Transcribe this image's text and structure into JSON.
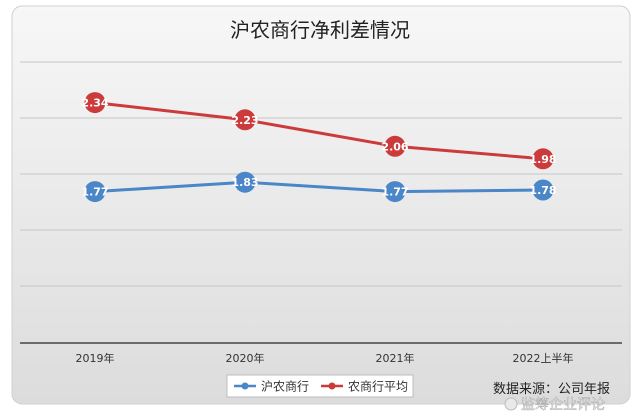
{
  "chart_data": {
    "type": "line",
    "title": "沪农商行净利差情况",
    "categories": [
      "2019年",
      "2020年",
      "2021年",
      "2022上半年"
    ],
    "series": [
      {
        "name": "沪农商行",
        "values": [
          1.77,
          1.83,
          1.77,
          1.78
        ],
        "color": "#4a86c8"
      },
      {
        "name": "农商行平均",
        "values": [
          2.34,
          2.23,
          2.06,
          1.98
        ],
        "color": "#cc3b3b"
      }
    ],
    "value_labels": {
      "s0": [
        "1.77",
        "1.83",
        "1.77",
        "1.78"
      ],
      "s1": [
        "2.34",
        "2.23",
        "2.06",
        "1.98"
      ]
    },
    "ylim": [
      0.8,
      2.6
    ],
    "grid": true,
    "legend": "bottom",
    "source_note": "数据来源：公司年报",
    "watermark": "监筹企业评论",
    "xlabel": "",
    "ylabel": ""
  }
}
